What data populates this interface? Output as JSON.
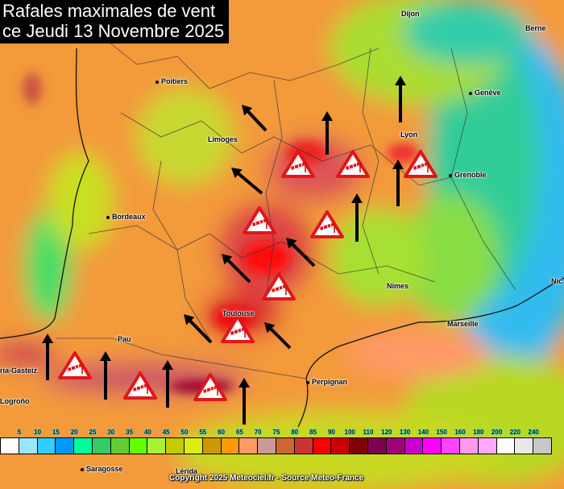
{
  "title": {
    "line1": "Rafales maximales de vent",
    "line2": "ce Jeudi 13 Novembre 2025"
  },
  "cities": [
    {
      "name": "Dijon"
    },
    {
      "name": "Berne"
    },
    {
      "name": "Poitiers"
    },
    {
      "name": "Genève"
    },
    {
      "name": "Limoges"
    },
    {
      "name": "Lyon"
    },
    {
      "name": "Grenoble"
    },
    {
      "name": "Bordeaux"
    },
    {
      "name": "Nimes"
    },
    {
      "name": "Nic"
    },
    {
      "name": "Marseille"
    },
    {
      "name": "Toulouse"
    },
    {
      "name": "Pau"
    },
    {
      "name": "Perpignan"
    },
    {
      "name": "ria-Gasteiz"
    },
    {
      "name": "Logroño"
    },
    {
      "name": "Saragosse"
    },
    {
      "name": "Lérida"
    }
  ],
  "legend": {
    "unit_ticks": [
      "5",
      "10",
      "15",
      "20",
      "25",
      "30",
      "35",
      "40",
      "45",
      "50",
      "55",
      "60",
      "65",
      "70",
      "75",
      "80",
      "85",
      "90",
      "100",
      "110",
      "120",
      "130",
      "140",
      "150",
      "160",
      "180",
      "200",
      "220",
      "240"
    ],
    "colors": [
      "#ffffff",
      "#99e6ff",
      "#33ccff",
      "#0099ff",
      "#00ff99",
      "#33cc66",
      "#66cc33",
      "#66ff00",
      "#a6f233",
      "#c2cc00",
      "#dcee10",
      "#cc9900",
      "#ff9900",
      "#ff9966",
      "#cc9999",
      "#cc6633",
      "#cc3333",
      "#ff0000",
      "#cc0000",
      "#800000",
      "#800050",
      "#a0007a",
      "#cc00cc",
      "#ff00ff",
      "#ff44ff",
      "#ff99f0",
      "#ffaaff",
      "#ffffff",
      "#e8e8e8",
      "#c8c8c8"
    ]
  },
  "warning_icon": "windsock-warning-icon",
  "arrow_icon": "wind-direction-arrow-icon",
  "copyright": "Copyright 2025 Meteociel.fr - Source Meteo-France"
}
